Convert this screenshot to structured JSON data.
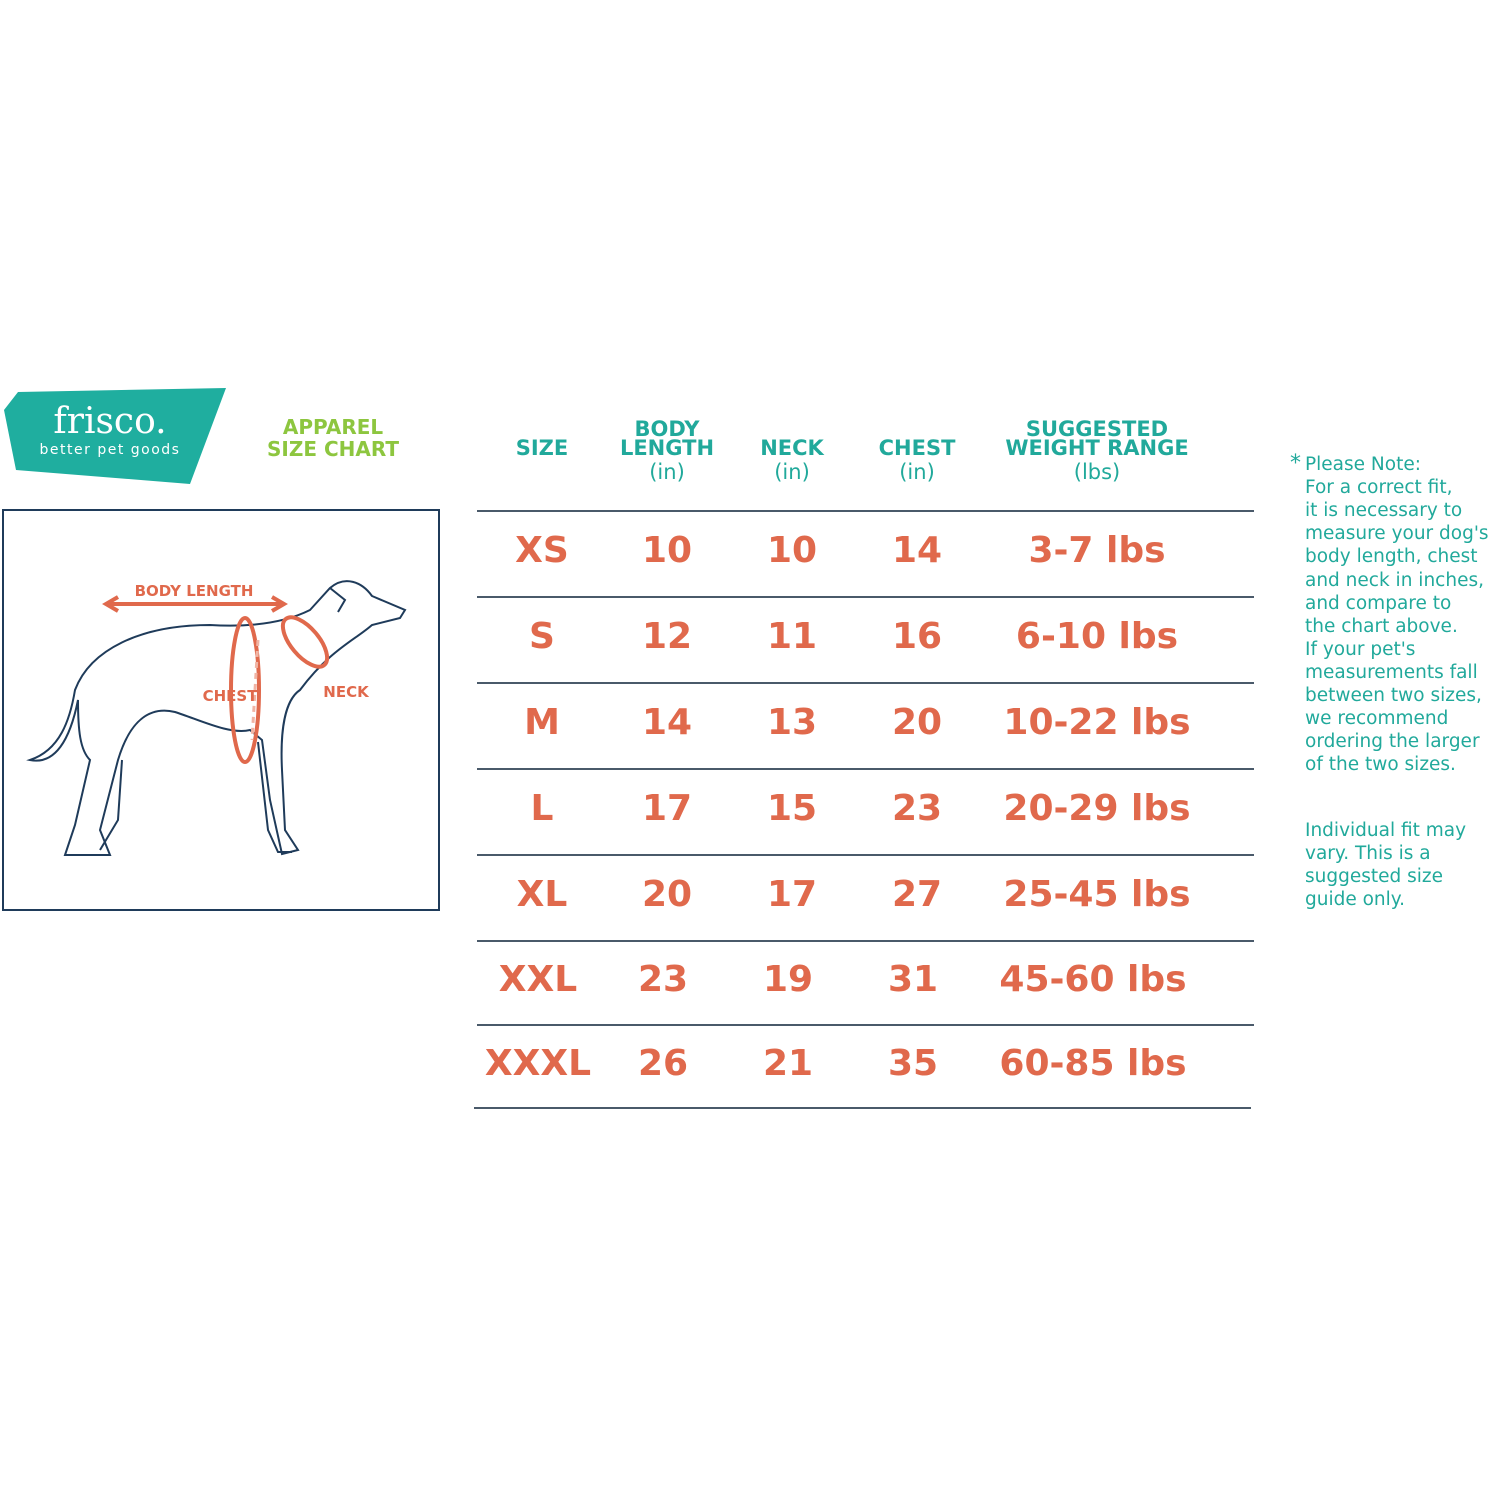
{
  "logo": {
    "brand": "frisco.",
    "tagline": "better pet goods"
  },
  "title": [
    "APPAREL",
    "SIZE  CHART"
  ],
  "diagram": {
    "body_length": "BODY LENGTH",
    "chest": "CHEST",
    "neck": "NECK"
  },
  "table": {
    "headers": [
      {
        "name": [
          "SIZE"
        ],
        "unit": ""
      },
      {
        "name": [
          "BODY",
          "LENGTH"
        ],
        "unit": "(in)"
      },
      {
        "name": [
          "NECK"
        ],
        "unit": "(in)"
      },
      {
        "name": [
          "CHEST"
        ],
        "unit": "(in)"
      },
      {
        "name": [
          "SUGGESTED",
          "WEIGHT RANGE"
        ],
        "unit": "(lbs)"
      }
    ],
    "rows": [
      [
        "XS",
        10,
        10,
        14,
        "3-7 lbs"
      ],
      [
        "S",
        12,
        11,
        16,
        "6-10 lbs"
      ],
      [
        "M",
        14,
        13,
        20,
        "10-22 lbs"
      ],
      [
        "L",
        17,
        15,
        23,
        "20-29 lbs"
      ],
      [
        "XL",
        20,
        17,
        27,
        "25-45 lbs"
      ],
      [
        "XXL",
        23,
        19,
        31,
        "45-60 lbs"
      ],
      [
        "XXXL",
        26,
        21,
        35,
        "60-85 lbs"
      ]
    ]
  },
  "note": {
    "marker": "*",
    "lines": [
      "Please Note:",
      "For a correct fit,",
      "it is necessary to",
      "measure your dog's",
      "body length, chest",
      "and neck in inches,",
      "and compare to",
      "the chart above.",
      "If your pet's",
      "measurements fall",
      "between two sizes,",
      "we recommend",
      "ordering the larger",
      "of the two sizes."
    ],
    "disclaimer": [
      "Individual fit may",
      "vary. This is a",
      "suggested size",
      "guide only."
    ]
  }
}
